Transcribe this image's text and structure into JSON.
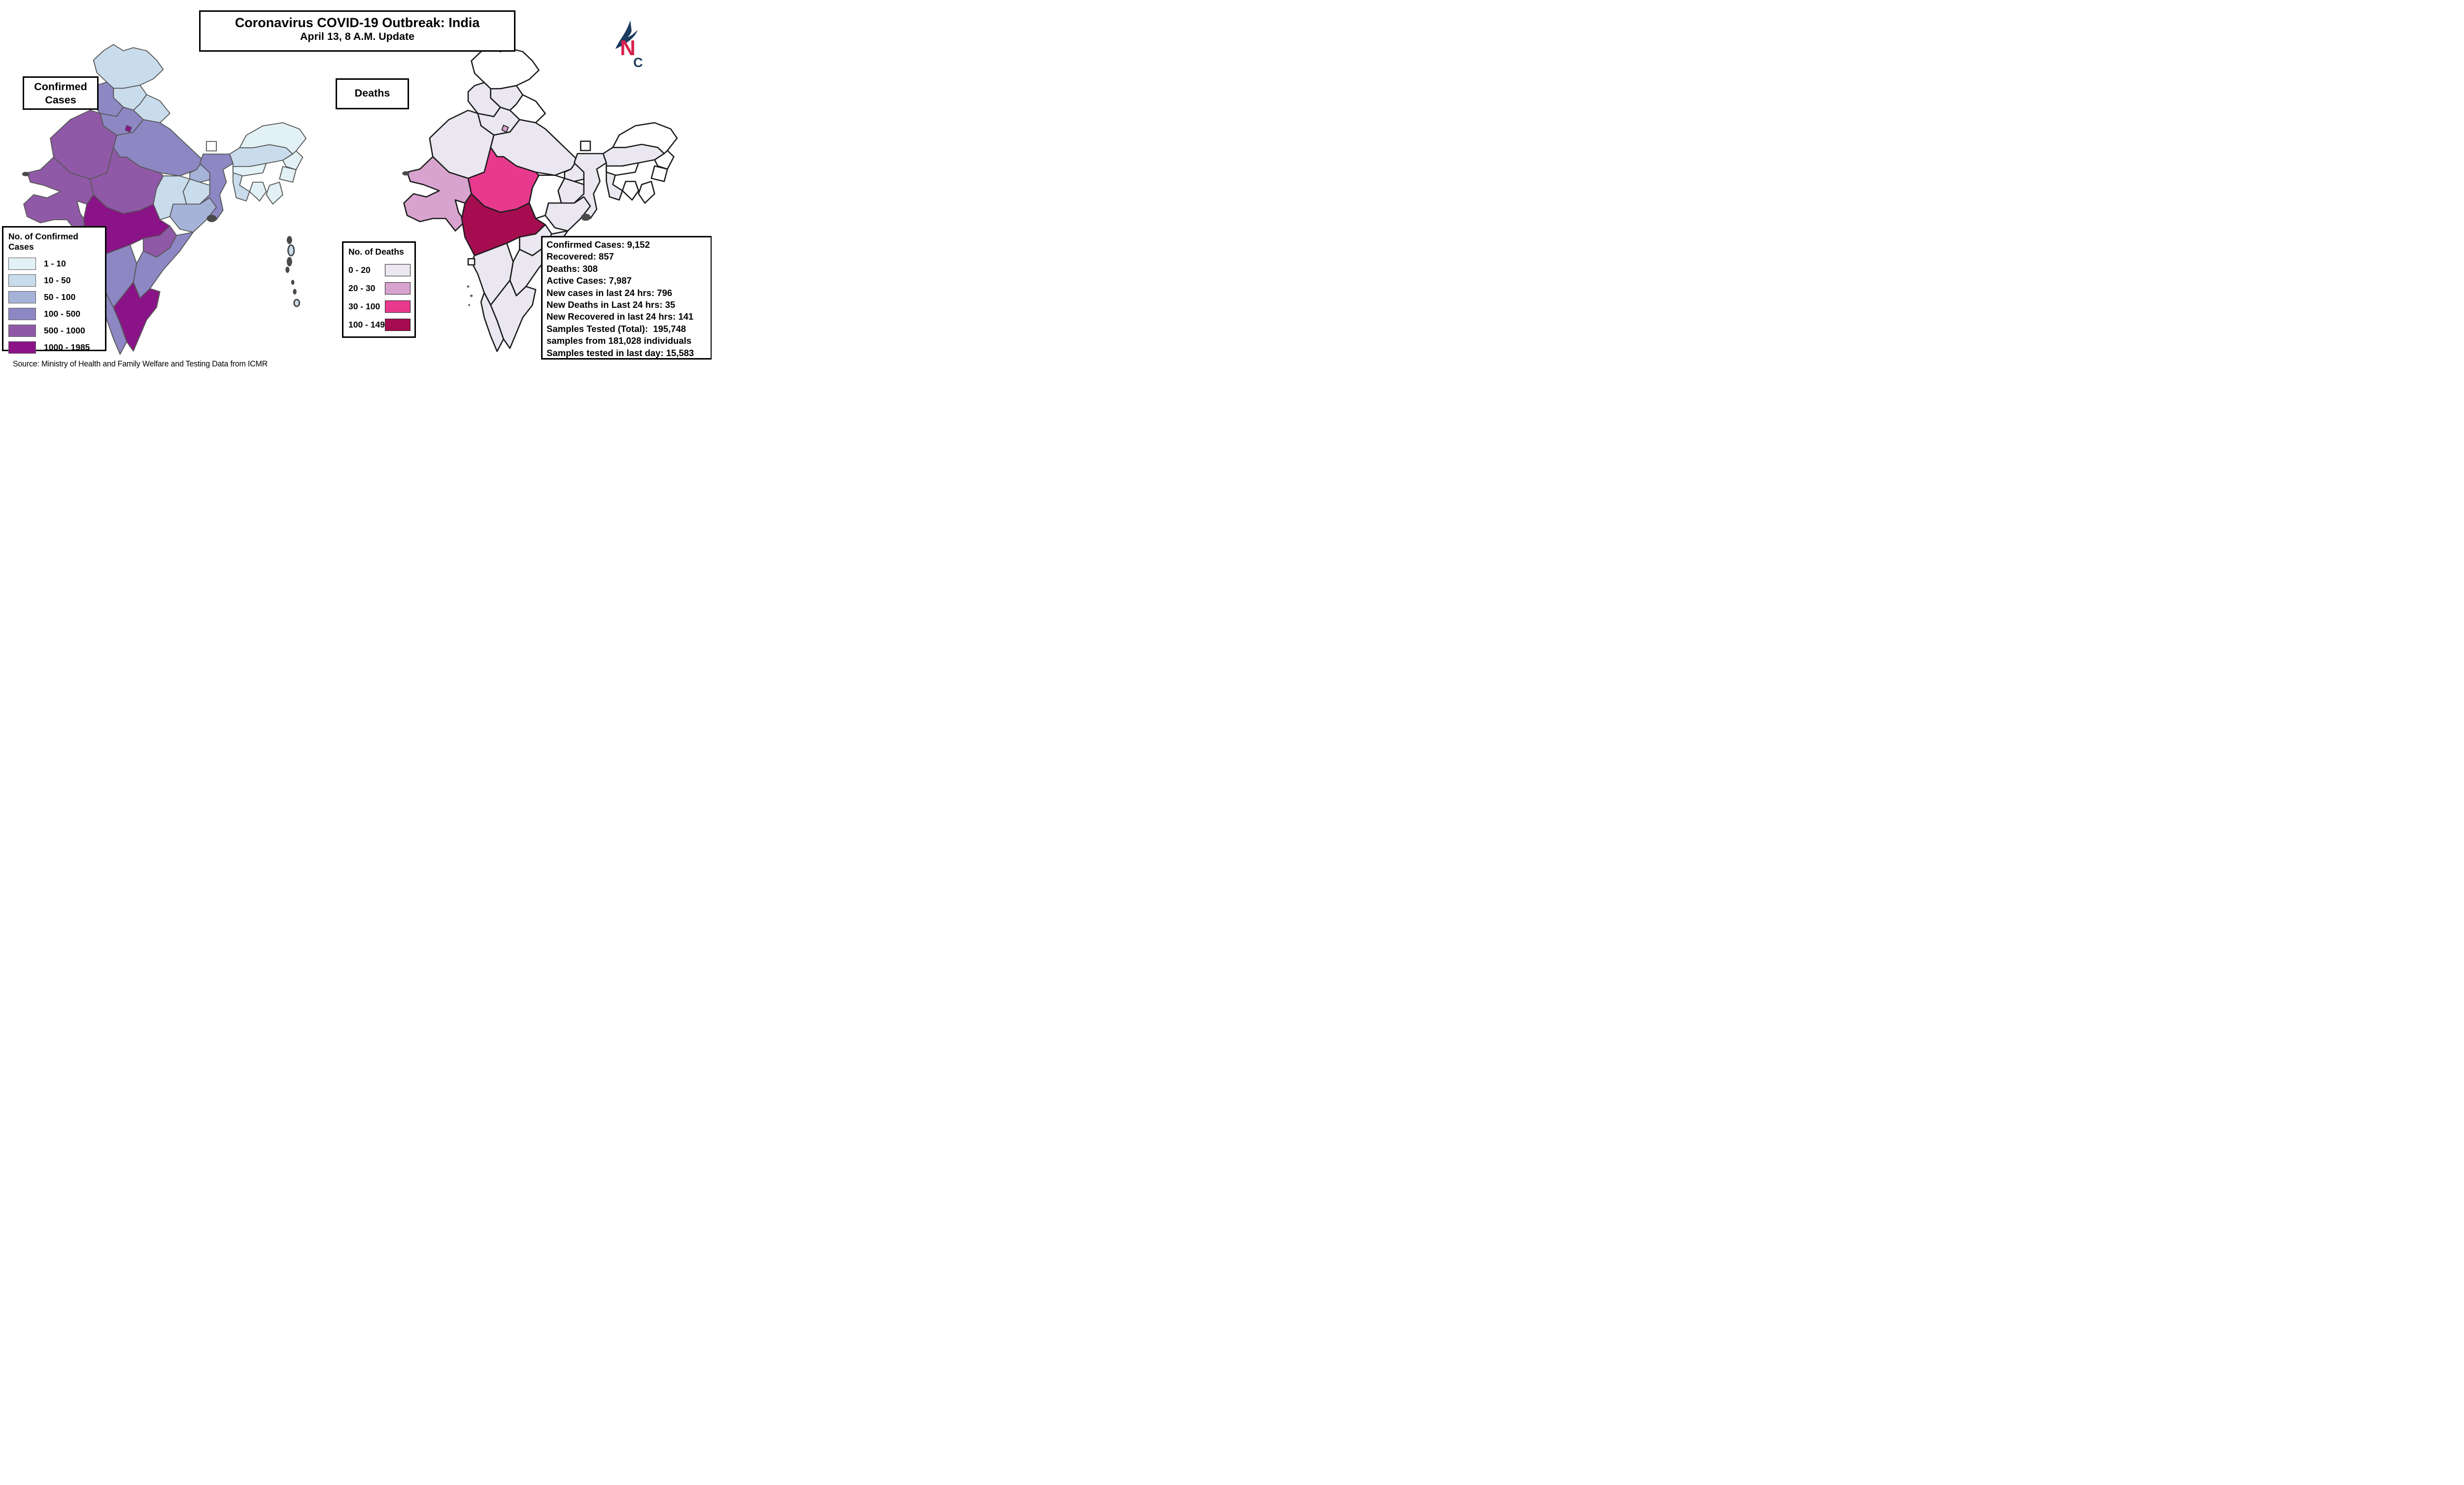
{
  "title": {
    "line1": "Coronavirus COVID-19 Outbreak: India",
    "line2": "April 13, 8 A.M. Update"
  },
  "map_labels": {
    "confirmed_line1": "Confirmed",
    "confirmed_line2": "Cases",
    "deaths": "Deaths"
  },
  "legend_cases": {
    "title": "No. of Confirmed Cases",
    "items": [
      {
        "label": "1 - 10",
        "color": "#e2f1f5"
      },
      {
        "label": "10 - 50",
        "color": "#c9dcec"
      },
      {
        "label": "50 - 100",
        "color": "#a5b3d9"
      },
      {
        "label": "100 - 500",
        "color": "#8d87c4"
      },
      {
        "label": "500 - 1000",
        "color": "#9059a7"
      },
      {
        "label": "1000 - 1985",
        "color": "#8a1487"
      }
    ]
  },
  "legend_deaths": {
    "title": "No. of Deaths",
    "items": [
      {
        "label": "0 - 20",
        "color": "#ebe7f0"
      },
      {
        "label": "20 - 30",
        "color": "#d8a3ce"
      },
      {
        "label": "30 - 100",
        "color": "#e73a8e"
      },
      {
        "label": "100 - 149",
        "color": "#a50d50"
      }
    ]
  },
  "stats": {
    "lines": [
      "Confirmed Cases: 9,152",
      "Recovered: 857",
      "Deaths: 308",
      "Active Cases: 7,987",
      "New cases in last 24 hrs: 796",
      "New Deaths in Last 24 hrs: 35",
      "New Recovered in last 24 hrs: 141",
      "Samples Tested (Total):  195,748 samples from 181,028 individuals",
      "Samples tested in last day: 15,583"
    ]
  },
  "source": "Source: Ministry of Health and Family Welfare and Testing Data from ICMR",
  "north_logo": {
    "letter_n": "N",
    "letter_c": "C",
    "n_color": "#d6224c",
    "c_color": "#1d3a5f",
    "arrow_color": "#1d3a5f"
  },
  "chart_data": {
    "type": "choropleth",
    "maps": [
      {
        "id": "confirmed",
        "label": "Confirmed Cases",
        "legend_title": "No. of Confirmed Cases",
        "classes": [
          "1 - 10",
          "10 - 50",
          "50 - 100",
          "100 - 500",
          "500 - 1000",
          "1000 - 1985"
        ],
        "border_color": "#575757",
        "no_data_color": "#ffffff"
      },
      {
        "id": "deaths",
        "label": "Deaths",
        "legend_title": "No. of Deaths",
        "classes": [
          "0 - 20",
          "20 - 30",
          "30 - 100",
          "100 - 149"
        ],
        "border_color": "#1c1c1c",
        "no_data_color": "#ffffff"
      }
    ],
    "states": [
      {
        "id": "jk",
        "name": "Jammu & Kashmir",
        "confirmed_class": "10 - 50",
        "deaths_class": "none"
      },
      {
        "id": "himachal",
        "name": "Himachal Pradesh",
        "confirmed_class": "10 - 50",
        "deaths_class": "0 - 20"
      },
      {
        "id": "punjab",
        "name": "Punjab",
        "confirmed_class": "100 - 500",
        "deaths_class": "0 - 20"
      },
      {
        "id": "uttarakhand",
        "name": "Uttarakhand",
        "confirmed_class": "10 - 50",
        "deaths_class": "none"
      },
      {
        "id": "haryana",
        "name": "Haryana",
        "confirmed_class": "100 - 500",
        "deaths_class": "0 - 20"
      },
      {
        "id": "delhi",
        "name": "Delhi",
        "confirmed_class": "1000 - 1985",
        "deaths_class": "20 - 30"
      },
      {
        "id": "rajasthan",
        "name": "Rajasthan",
        "confirmed_class": "500 - 1000",
        "deaths_class": "0 - 20"
      },
      {
        "id": "up",
        "name": "Uttar Pradesh",
        "confirmed_class": "100 - 500",
        "deaths_class": "0 - 20"
      },
      {
        "id": "bihar",
        "name": "Bihar",
        "confirmed_class": "50 - 100",
        "deaths_class": "0 - 20"
      },
      {
        "id": "sikkim",
        "name": "Sikkim",
        "confirmed_class": "none",
        "deaths_class": "none"
      },
      {
        "id": "wb",
        "name": "West Bengal",
        "confirmed_class": "100 - 500",
        "deaths_class": "0 - 20"
      },
      {
        "id": "assam",
        "name": "Assam",
        "confirmed_class": "10 - 50",
        "deaths_class": "0 - 20"
      },
      {
        "id": "arunachal",
        "name": "Arunachal Pradesh",
        "confirmed_class": "1 - 10",
        "deaths_class": "none"
      },
      {
        "id": "nagaland",
        "name": "Nagaland",
        "confirmed_class": "1 - 10",
        "deaths_class": "none"
      },
      {
        "id": "manipur",
        "name": "Manipur",
        "confirmed_class": "1 - 10",
        "deaths_class": "none"
      },
      {
        "id": "mizoram",
        "name": "Mizoram",
        "confirmed_class": "1 - 10",
        "deaths_class": "none"
      },
      {
        "id": "tripura",
        "name": "Tripura",
        "confirmed_class": "1 - 10",
        "deaths_class": "none"
      },
      {
        "id": "meghalaya",
        "name": "Meghalaya",
        "confirmed_class": "1 - 10",
        "deaths_class": "none"
      },
      {
        "id": "mp",
        "name": "Madhya Pradesh",
        "confirmed_class": "500 - 1000",
        "deaths_class": "30 - 100"
      },
      {
        "id": "gujarat",
        "name": "Gujarat",
        "confirmed_class": "500 - 1000",
        "deaths_class": "20 - 30"
      },
      {
        "id": "chhattisgarh",
        "name": "Chhattisgarh",
        "confirmed_class": "10 - 50",
        "deaths_class": "none"
      },
      {
        "id": "jharkhand",
        "name": "Jharkhand",
        "confirmed_class": "10 - 50",
        "deaths_class": "0 - 20"
      },
      {
        "id": "odisha",
        "name": "Odisha",
        "confirmed_class": "50 - 100",
        "deaths_class": "0 - 20"
      },
      {
        "id": "maharashtra",
        "name": "Maharashtra",
        "confirmed_class": "1000 - 1985",
        "deaths_class": "100 - 149"
      },
      {
        "id": "telangana",
        "name": "Telangana",
        "confirmed_class": "500 - 1000",
        "deaths_class": "0 - 20"
      },
      {
        "id": "andhra",
        "name": "Andhra Pradesh",
        "confirmed_class": "100 - 500",
        "deaths_class": "0 - 20"
      },
      {
        "id": "karnataka",
        "name": "Karnataka",
        "confirmed_class": "100 - 500",
        "deaths_class": "0 - 20"
      },
      {
        "id": "goa",
        "name": "Goa",
        "confirmed_class": "1 - 10",
        "deaths_class": "none"
      },
      {
        "id": "kerala",
        "name": "Kerala",
        "confirmed_class": "100 - 500",
        "deaths_class": "0 - 20"
      },
      {
        "id": "tamilnadu",
        "name": "Tamil Nadu",
        "confirmed_class": "1000 - 1985",
        "deaths_class": "0 - 20"
      }
    ]
  }
}
